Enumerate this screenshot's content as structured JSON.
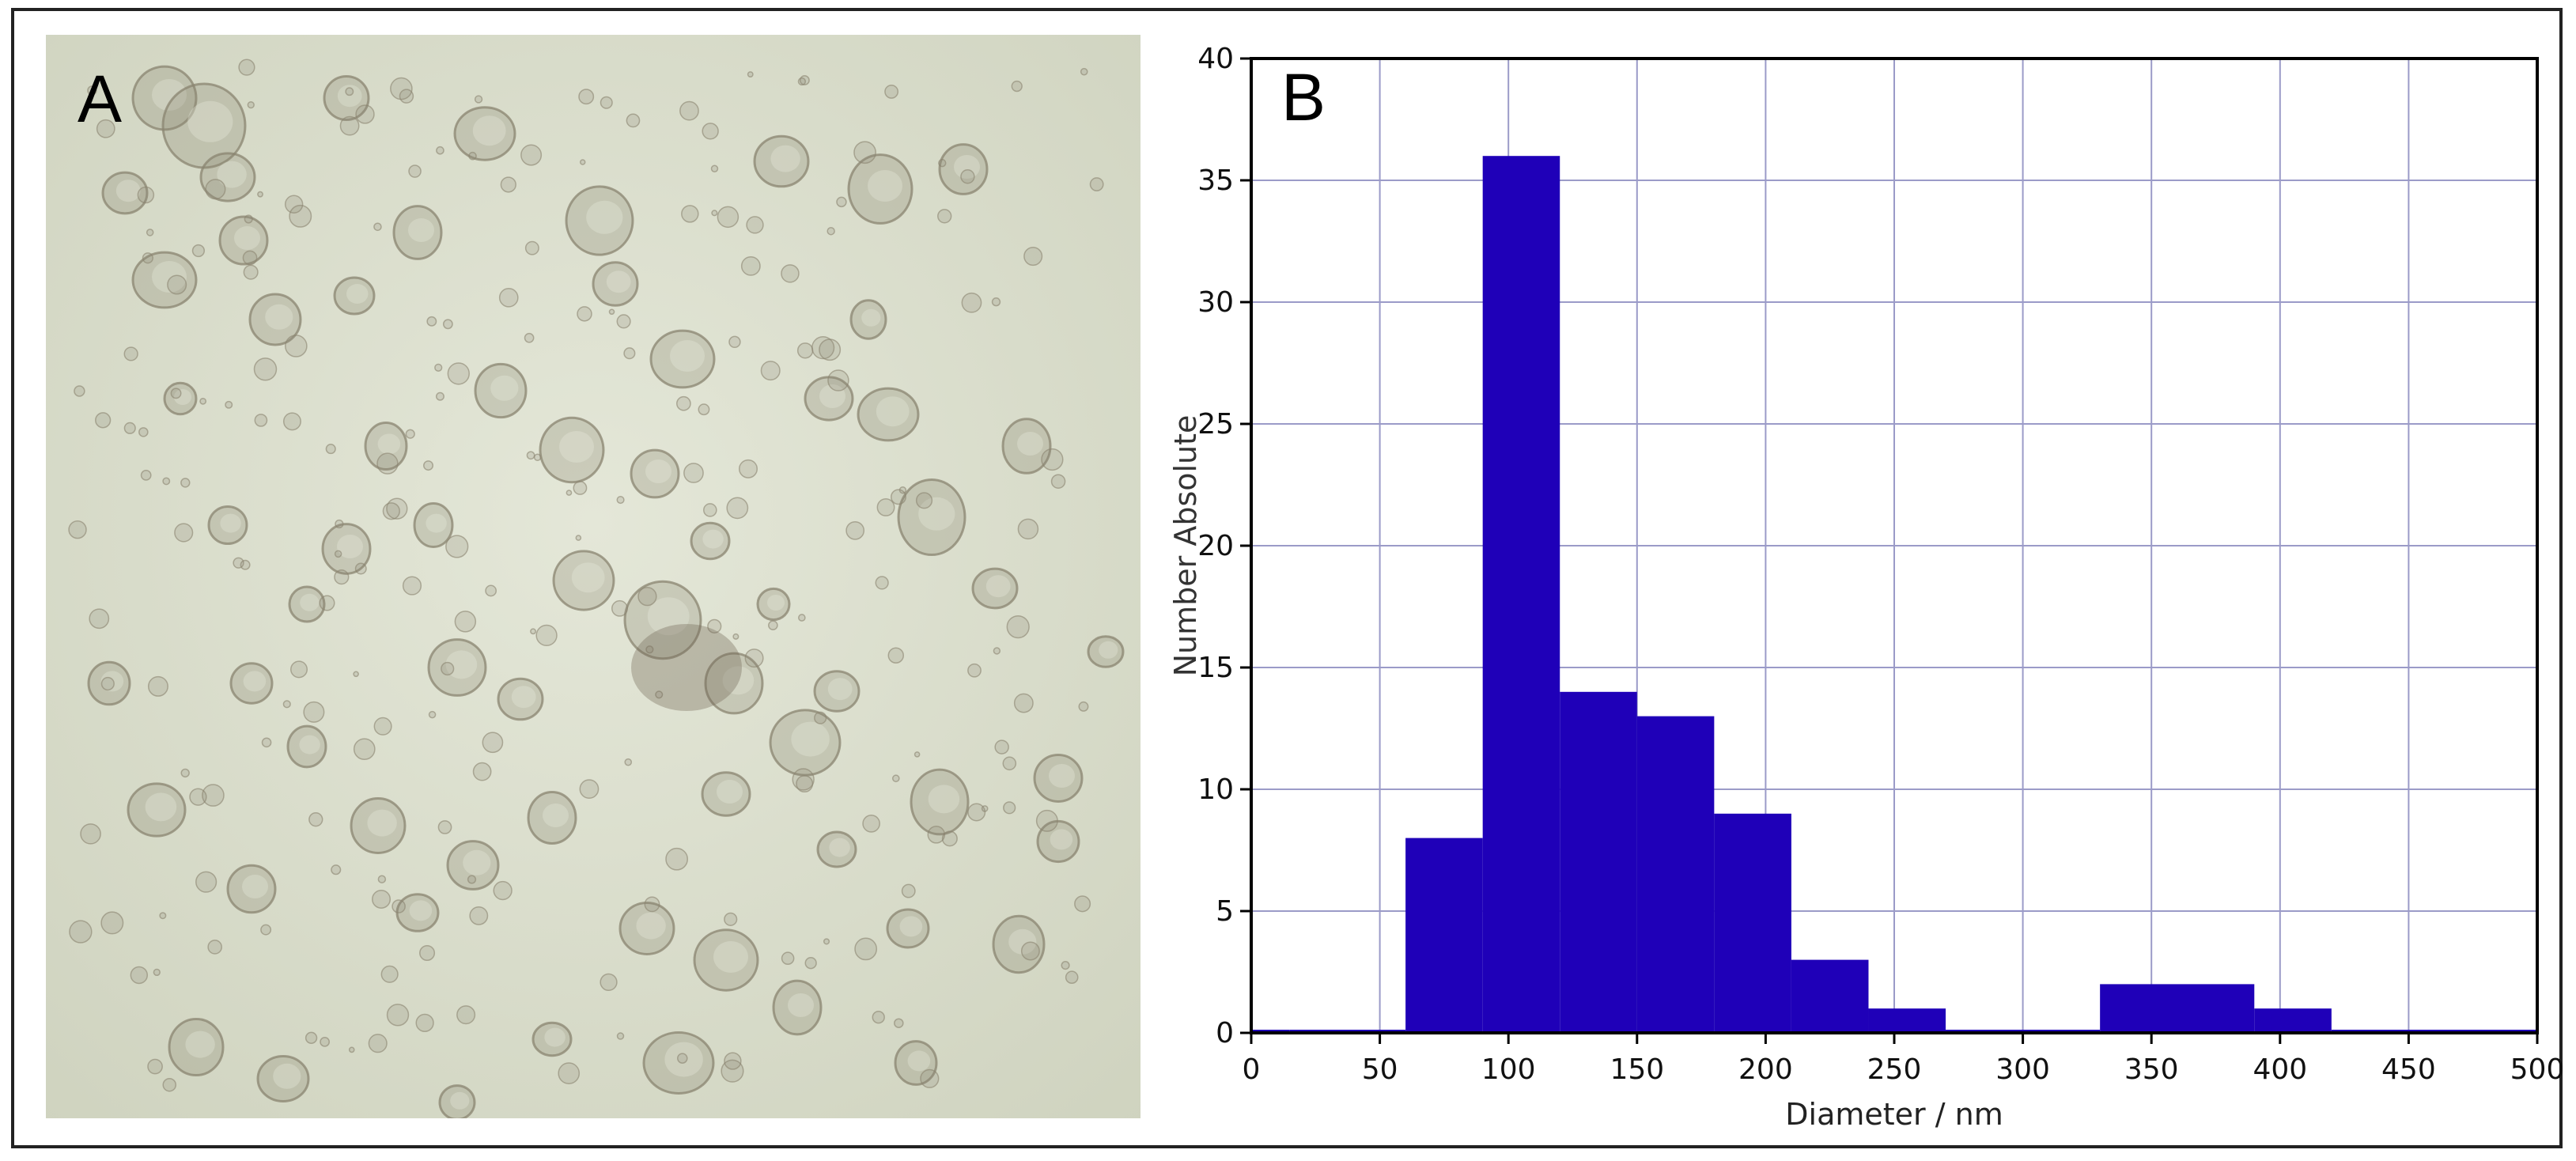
{
  "panels": {
    "a_label": "A",
    "b_label": "B"
  },
  "micrograph": {
    "subject": "brightfield micrograph of organoid-like spheres",
    "background_color": "#d9dccb",
    "sphere_color": "#8a8470"
  },
  "chart_data": {
    "type": "bar",
    "histogram": true,
    "xlabel": "Diameter / nm",
    "ylabel": "Number Absolute",
    "xlim": [
      0,
      500
    ],
    "ylim": [
      0,
      40
    ],
    "xticks": [
      0,
      50,
      100,
      150,
      200,
      250,
      300,
      350,
      400,
      450,
      500
    ],
    "yticks": [
      0,
      5,
      10,
      15,
      20,
      25,
      30,
      35,
      40
    ],
    "grid": true,
    "bar_color": "#1f00b8",
    "grid_color": "#9b9bc8",
    "bins": [
      {
        "x0": 0,
        "x1": 15,
        "value": 0
      },
      {
        "x0": 15,
        "x1": 60,
        "value": 0.1
      },
      {
        "x0": 60,
        "x1": 90,
        "value": 8
      },
      {
        "x0": 90,
        "x1": 120,
        "value": 36
      },
      {
        "x0": 120,
        "x1": 150,
        "value": 14
      },
      {
        "x0": 150,
        "x1": 180,
        "value": 13
      },
      {
        "x0": 180,
        "x1": 210,
        "value": 9
      },
      {
        "x0": 210,
        "x1": 240,
        "value": 3
      },
      {
        "x0": 240,
        "x1": 270,
        "value": 1
      },
      {
        "x0": 270,
        "x1": 330,
        "value": 0
      },
      {
        "x0": 330,
        "x1": 390,
        "value": 2
      },
      {
        "x0": 390,
        "x1": 420,
        "value": 1
      },
      {
        "x0": 420,
        "x1": 500,
        "value": 0
      }
    ]
  }
}
